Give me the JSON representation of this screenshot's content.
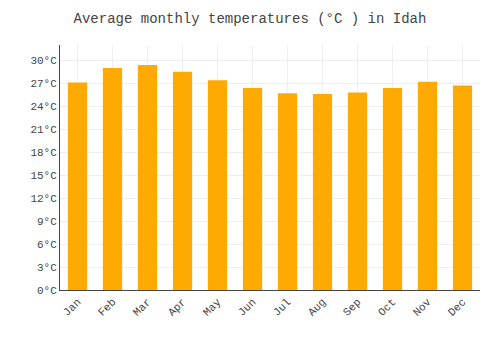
{
  "chart_data": {
    "type": "bar",
    "title": "Average monthly temperatures (°C ) in Idah",
    "categories": [
      "Jan",
      "Feb",
      "Mar",
      "Apr",
      "May",
      "Jun",
      "Jul",
      "Aug",
      "Sep",
      "Oct",
      "Nov",
      "Dec"
    ],
    "values": [
      27.1,
      29.0,
      29.4,
      28.5,
      27.4,
      26.4,
      25.7,
      25.6,
      25.8,
      26.4,
      27.2,
      26.7
    ],
    "color": "#FFAA00",
    "ylim": [
      0,
      32
    ],
    "yticks": [
      {
        "value": 0,
        "label": "0°C"
      },
      {
        "value": 3,
        "label": "3°C"
      },
      {
        "value": 6,
        "label": "6°C"
      },
      {
        "value": 9,
        "label": "9°C"
      },
      {
        "value": 12,
        "label": "12°C"
      },
      {
        "value": 15,
        "label": "15°C"
      },
      {
        "value": 18,
        "label": "18°C"
      },
      {
        "value": 21,
        "label": "21°C"
      },
      {
        "value": 24,
        "label": "24°C"
      },
      {
        "value": 27,
        "label": "27°C"
      },
      {
        "value": 30,
        "label": "30°C"
      }
    ],
    "grid": true
  }
}
